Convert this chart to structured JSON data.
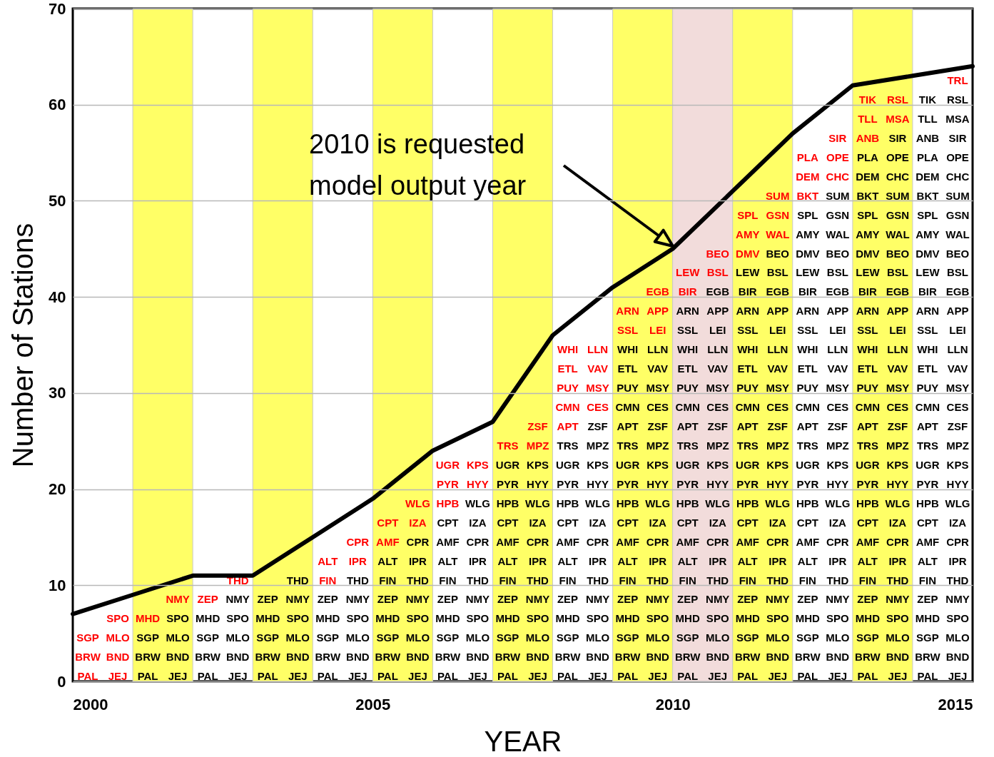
{
  "chart_data": {
    "type": "line",
    "xlabel": "YEAR",
    "ylabel": "Number of Stations",
    "x": [
      2000,
      2001,
      2002,
      2003,
      2004,
      2005,
      2006,
      2007,
      2008,
      2009,
      2010,
      2011,
      2012,
      2013,
      2014,
      2015
    ],
    "series": [
      {
        "color": "#000000",
        "values": [
          7,
          9,
          11,
          11,
          15,
          19,
          24,
          27,
          36,
          41,
          45,
          51,
          57,
          62,
          63,
          64
        ]
      }
    ],
    "xlim": [
      2000,
      2015
    ],
    "xticks": [
      2000,
      2005,
      2010,
      2015
    ],
    "ylim": [
      0,
      70
    ],
    "yticks": [
      0,
      10,
      20,
      30,
      40,
      50,
      60,
      70
    ],
    "grid": "y",
    "marker": "none",
    "line_style": "solid",
    "bands": [
      {
        "axis": "x",
        "from": 2001,
        "to": 2002,
        "color": "#ffff66"
      },
      {
        "axis": "x",
        "from": 2003,
        "to": 2004,
        "color": "#ffff66"
      },
      {
        "axis": "x",
        "from": 2005,
        "to": 2006,
        "color": "#ffff66"
      },
      {
        "axis": "x",
        "from": 2007,
        "to": 2008,
        "color": "#ffff66"
      },
      {
        "axis": "x",
        "from": 2009,
        "to": 2010,
        "color": "#ffff66"
      },
      {
        "axis": "x",
        "from": 2010,
        "to": 2011,
        "color": "#f2dcdb"
      },
      {
        "axis": "x",
        "from": 2011,
        "to": 2012,
        "color": "#ffff66"
      },
      {
        "axis": "x",
        "from": 2013,
        "to": 2014,
        "color": "#ffff66"
      }
    ],
    "annotations": [
      "2010 is requested\nmodel output year",
      "PAL",
      "JEJ",
      "BRW",
      "BND",
      "SGP",
      "MLO",
      "SPO",
      "PAL",
      "JEJ",
      "BRW",
      "BND",
      "SGP",
      "MLO",
      "MHD",
      "SPO",
      "NMY",
      "PAL",
      "JEJ",
      "BRW",
      "BND",
      "SGP",
      "MLO",
      "MHD",
      "SPO",
      "ZEP",
      "NMY",
      "THD",
      "PAL",
      "JEJ",
      "BRW",
      "BND",
      "SGP",
      "MLO",
      "MHD",
      "SPO",
      "ZEP",
      "NMY",
      "THD",
      "PAL",
      "JEJ",
      "BRW",
      "BND",
      "SGP",
      "MLO",
      "MHD",
      "SPO",
      "ZEP",
      "NMY",
      "FIN",
      "THD",
      "ALT",
      "IPR",
      "CPR",
      "PAL",
      "JEJ",
      "BRW",
      "BND",
      "SGP",
      "MLO",
      "MHD",
      "SPO",
      "ZEP",
      "NMY",
      "FIN",
      "THD",
      "ALT",
      "IPR",
      "AMF",
      "CPR",
      "CPT",
      "IZA",
      "WLG",
      "PAL",
      "JEJ",
      "BRW",
      "BND",
      "SGP",
      "MLO",
      "MHD",
      "SPO",
      "ZEP",
      "NMY",
      "FIN",
      "THD",
      "ALT",
      "IPR",
      "AMF",
      "CPR",
      "CPT",
      "IZA",
      "HPB",
      "WLG",
      "PYR",
      "HYY",
      "UGR",
      "KPS",
      "PAL",
      "JEJ",
      "BRW",
      "BND",
      "SGP",
      "MLO",
      "MHD",
      "SPO",
      "ZEP",
      "NMY",
      "FIN",
      "THD",
      "ALT",
      "IPR",
      "AMF",
      "CPR",
      "CPT",
      "IZA",
      "HPB",
      "WLG",
      "PYR",
      "HYY",
      "UGR",
      "KPS",
      "TRS",
      "MPZ",
      "ZSF",
      "PAL",
      "JEJ",
      "BRW",
      "BND",
      "SGP",
      "MLO",
      "MHD",
      "SPO",
      "ZEP",
      "NMY",
      "FIN",
      "THD",
      "ALT",
      "IPR",
      "AMF",
      "CPR",
      "CPT",
      "IZA",
      "HPB",
      "WLG",
      "PYR",
      "HYY",
      "UGR",
      "KPS",
      "TRS",
      "MPZ",
      "APT",
      "ZSF",
      "CMN",
      "CES",
      "PUY",
      "MSY",
      "ETL",
      "VAV",
      "WHI",
      "LLN",
      "PAL",
      "JEJ",
      "BRW",
      "BND",
      "SGP",
      "MLO",
      "MHD",
      "SPO",
      "ZEP",
      "NMY",
      "FIN",
      "THD",
      "ALT",
      "IPR",
      "AMF",
      "CPR",
      "CPT",
      "IZA",
      "HPB",
      "WLG",
      "PYR",
      "HYY",
      "UGR",
      "KPS",
      "TRS",
      "MPZ",
      "APT",
      "ZSF",
      "CMN",
      "CES",
      "PUY",
      "MSY",
      "ETL",
      "VAV",
      "WHI",
      "LLN",
      "SSL",
      "LEI",
      "ARN",
      "APP",
      "EGB",
      "PAL",
      "JEJ",
      "BRW",
      "BND",
      "SGP",
      "MLO",
      "MHD",
      "SPO",
      "ZEP",
      "NMY",
      "FIN",
      "THD",
      "ALT",
      "IPR",
      "AMF",
      "CPR",
      "CPT",
      "IZA",
      "HPB",
      "WLG",
      "PYR",
      "HYY",
      "UGR",
      "KPS",
      "TRS",
      "MPZ",
      "APT",
      "ZSF",
      "CMN",
      "CES",
      "PUY",
      "MSY",
      "ETL",
      "VAV",
      "WHI",
      "LLN",
      "SSL",
      "LEI",
      "ARN",
      "APP",
      "BIR",
      "EGB",
      "LEW",
      "BSL",
      "BEO",
      "PAL",
      "JEJ",
      "BRW",
      "BND",
      "SGP",
      "MLO",
      "MHD",
      "SPO",
      "ZEP",
      "NMY",
      "FIN",
      "THD",
      "ALT",
      "IPR",
      "AMF",
      "CPR",
      "CPT",
      "IZA",
      "HPB",
      "WLG",
      "PYR",
      "HYY",
      "UGR",
      "KPS",
      "TRS",
      "MPZ",
      "APT",
      "ZSF",
      "CMN",
      "CES",
      "PUY",
      "MSY",
      "ETL",
      "VAV",
      "WHI",
      "LLN",
      "SSL",
      "LEI",
      "ARN",
      "APP",
      "BIR",
      "EGB",
      "LEW",
      "BSL",
      "DMV",
      "BEO",
      "AMY",
      "WAL",
      "SPL",
      "GSN",
      "SUM",
      "PAL",
      "JEJ",
      "BRW",
      "BND",
      "SGP",
      "MLO",
      "MHD",
      "SPO",
      "ZEP",
      "NMY",
      "FIN",
      "THD",
      "ALT",
      "IPR",
      "AMF",
      "CPR",
      "CPT",
      "IZA",
      "HPB",
      "WLG",
      "PYR",
      "HYY",
      "UGR",
      "KPS",
      "TRS",
      "MPZ",
      "APT",
      "ZSF",
      "CMN",
      "CES",
      "PUY",
      "MSY",
      "ETL",
      "VAV",
      "WHI",
      "LLN",
      "SSL",
      "LEI",
      "ARN",
      "APP",
      "BIR",
      "EGB",
      "LEW",
      "BSL",
      "DMV",
      "BEO",
      "AMY",
      "WAL",
      "SPL",
      "GSN",
      "BKT",
      "SUM",
      "DEM",
      "CHC",
      "PLA",
      "OPE",
      "SIR",
      "PAL",
      "JEJ",
      "BRW",
      "BND",
      "SGP",
      "MLO",
      "MHD",
      "SPO",
      "ZEP",
      "NMY",
      "FIN",
      "THD",
      "ALT",
      "IPR",
      "AMF",
      "CPR",
      "CPT",
      "IZA",
      "HPB",
      "WLG",
      "PYR",
      "HYY",
      "UGR",
      "KPS",
      "TRS",
      "MPZ",
      "APT",
      "ZSF",
      "CMN",
      "CES",
      "PUY",
      "MSY",
      "ETL",
      "VAV",
      "WHI",
      "LLN",
      "SSL",
      "LEI",
      "ARN",
      "APP",
      "BIR",
      "EGB",
      "LEW",
      "BSL",
      "DMV",
      "BEO",
      "AMY",
      "WAL",
      "SPL",
      "GSN",
      "BKT",
      "SUM",
      "DEM",
      "CHC",
      "PLA",
      "OPE",
      "ANB",
      "SIR",
      "TLL",
      "MSA",
      "TIK",
      "RSL",
      "PAL",
      "JEJ",
      "BRW",
      "BND",
      "SGP",
      "MLO",
      "MHD",
      "SPO",
      "ZEP",
      "NMY",
      "FIN",
      "THD",
      "ALT",
      "IPR",
      "AMF",
      "CPR",
      "CPT",
      "IZA",
      "HPB",
      "WLG",
      "PYR",
      "HYY",
      "UGR",
      "KPS",
      "TRS",
      "MPZ",
      "APT",
      "ZSF",
      "CMN",
      "CES",
      "PUY",
      "MSY",
      "ETL",
      "VAV",
      "WHI",
      "LLN",
      "SSL",
      "LEI",
      "ARN",
      "APP",
      "BIR",
      "EGB",
      "LEW",
      "BSL",
      "DMV",
      "BEO",
      "AMY",
      "WAL",
      "SPL",
      "GSN",
      "BKT",
      "SUM",
      "DEM",
      "CHC",
      "PLA",
      "OPE",
      "ANB",
      "SIR",
      "TLL",
      "MSA",
      "TIK",
      "RSL",
      "TRL"
    ]
  }
}
